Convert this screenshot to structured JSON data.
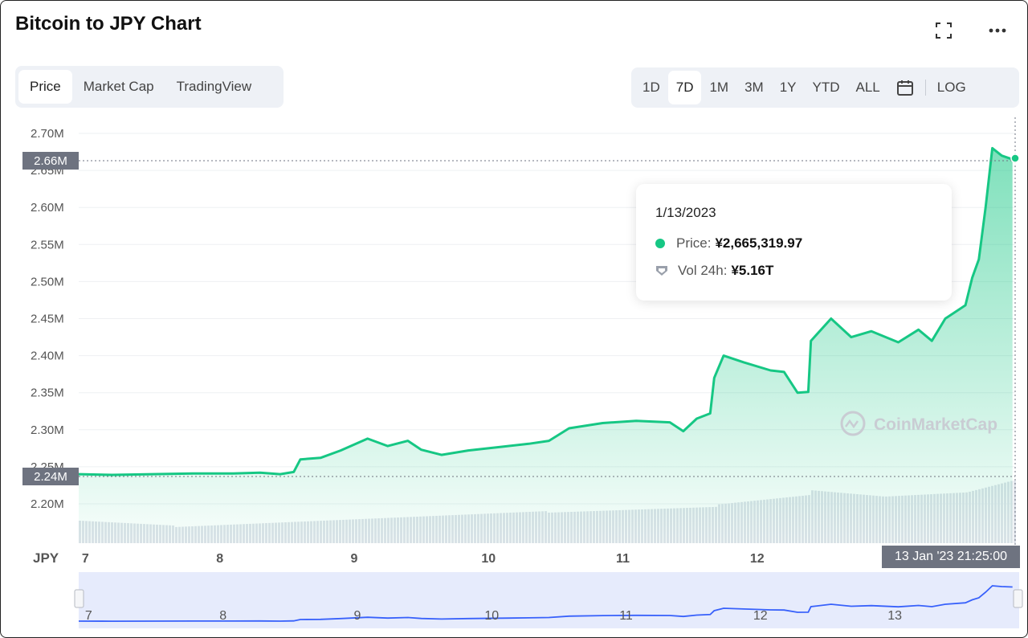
{
  "title": "Bitcoin to JPY Chart",
  "header_icons": [
    "fullscreen-icon",
    "more-icon"
  ],
  "tabs": [
    {
      "label": "Price",
      "active": true
    },
    {
      "label": "Market Cap",
      "active": false
    },
    {
      "label": "TradingView",
      "active": false
    }
  ],
  "ranges": [
    {
      "label": "1D",
      "active": false
    },
    {
      "label": "7D",
      "active": true
    },
    {
      "label": "1M",
      "active": false
    },
    {
      "label": "3M",
      "active": false
    },
    {
      "label": "1Y",
      "active": false
    },
    {
      "label": "YTD",
      "active": false
    },
    {
      "label": "ALL",
      "active": false
    }
  ],
  "log_label": "LOG",
  "currency_label": "JPY",
  "tooltip": {
    "date": "1/13/2023",
    "price_label": "Price:",
    "price_value": "¥2,665,319.97",
    "vol_label": "Vol 24h:",
    "vol_value": "¥5.16T"
  },
  "price_tags": {
    "high": "2.66M",
    "low": "2.24M"
  },
  "time_tag": "13 Jan '23   21:25:00",
  "watermark": "CoinMarketCap",
  "navigator_ticks": [
    "7",
    "8",
    "9",
    "10",
    "11",
    "12",
    "13"
  ],
  "colors": {
    "line": "#16c784",
    "navigator_line": "#3861fb",
    "navigator_bg": "#e6ebfc",
    "volume": "#dfe3ea"
  },
  "chart_data": {
    "type": "line",
    "title": "Bitcoin to JPY Chart",
    "ylabel": "JPY",
    "x_ticks": [
      "7",
      "8",
      "9",
      "10",
      "11",
      "12"
    ],
    "y_ticks": [
      "2.20M",
      "2.25M",
      "2.30M",
      "2.35M",
      "2.40M",
      "2.45M",
      "2.50M",
      "2.55M",
      "2.60M",
      "2.65M",
      "2.70M"
    ],
    "y_tick_values": [
      2.2,
      2.25,
      2.3,
      2.35,
      2.4,
      2.45,
      2.5,
      2.55,
      2.6,
      2.65,
      2.7
    ],
    "ylim": [
      2.16,
      2.72
    ],
    "xlim": [
      6.95,
      13.92
    ],
    "grid": true,
    "series": [
      {
        "values": [
          [
            6.95,
            2.24
          ],
          [
            7.2,
            2.239
          ],
          [
            7.5,
            2.24
          ],
          [
            7.8,
            2.241
          ],
          [
            8.1,
            2.241
          ],
          [
            8.3,
            2.242
          ],
          [
            8.45,
            2.24
          ],
          [
            8.55,
            2.243
          ],
          [
            8.6,
            2.26
          ],
          [
            8.75,
            2.262
          ],
          [
            8.9,
            2.272
          ],
          [
            9.1,
            2.288
          ],
          [
            9.25,
            2.278
          ],
          [
            9.4,
            2.285
          ],
          [
            9.5,
            2.273
          ],
          [
            9.65,
            2.266
          ],
          [
            9.85,
            2.272
          ],
          [
            10.1,
            2.277
          ],
          [
            10.3,
            2.281
          ],
          [
            10.45,
            2.285
          ],
          [
            10.6,
            2.302
          ],
          [
            10.85,
            2.309
          ],
          [
            11.1,
            2.312
          ],
          [
            11.35,
            2.31
          ],
          [
            11.45,
            2.298
          ],
          [
            11.55,
            2.315
          ],
          [
            11.65,
            2.322
          ],
          [
            11.68,
            2.37
          ],
          [
            11.75,
            2.4
          ],
          [
            11.9,
            2.391
          ],
          [
            12.1,
            2.38
          ],
          [
            12.2,
            2.378
          ],
          [
            12.3,
            2.35
          ],
          [
            12.38,
            2.351
          ],
          [
            12.4,
            2.42
          ],
          [
            12.55,
            2.45
          ],
          [
            12.7,
            2.425
          ],
          [
            12.85,
            2.433
          ],
          [
            13.05,
            2.418
          ],
          [
            13.2,
            2.435
          ],
          [
            13.3,
            2.42
          ],
          [
            13.4,
            2.45
          ],
          [
            13.55,
            2.468
          ],
          [
            13.6,
            2.505
          ],
          [
            13.65,
            2.53
          ],
          [
            13.7,
            2.6
          ],
          [
            13.75,
            2.68
          ],
          [
            13.82,
            2.67
          ],
          [
            13.9,
            2.665
          ]
        ]
      }
    ]
  }
}
